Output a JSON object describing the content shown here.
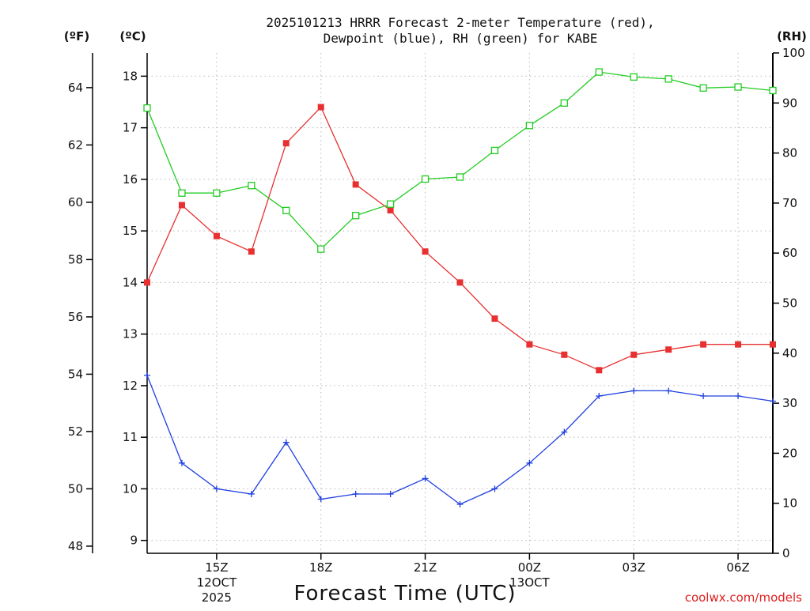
{
  "chart_data": {
    "type": "line",
    "title_lines": [
      "2025101213 HRRR Forecast 2-meter Temperature (red),",
      "Dewpoint (blue), RH (green) for KABE"
    ],
    "units": {
      "fahrenheit": "(ºF)",
      "celsius": "(ºC)",
      "rh": "(RH)"
    },
    "xlabel": "Forecast Time (UTC)",
    "credit": "coolwx.com/models",
    "x_hours": [
      13,
      14,
      15,
      16,
      17,
      18,
      19,
      20,
      21,
      22,
      23,
      24,
      25,
      26,
      27,
      28,
      29,
      30,
      31
    ],
    "xlim": [
      13,
      31
    ],
    "x_ticks": [
      {
        "hour": 15,
        "lines": [
          "15Z",
          "12OCT",
          "2025"
        ]
      },
      {
        "hour": 18,
        "lines": [
          "18Z"
        ]
      },
      {
        "hour": 21,
        "lines": [
          "21Z"
        ]
      },
      {
        "hour": 24,
        "lines": [
          "00Z",
          "13OCT"
        ]
      },
      {
        "hour": 27,
        "lines": [
          "03Z"
        ]
      },
      {
        "hour": 30,
        "lines": [
          "06Z"
        ]
      }
    ],
    "celsius_axis": {
      "lim": [
        8.75,
        18.45
      ],
      "ticks": [
        9,
        10,
        11,
        12,
        13,
        14,
        15,
        16,
        17,
        18
      ]
    },
    "fahrenheit_axis": {
      "lim": [
        47.75,
        65.21
      ],
      "ticks": [
        48,
        50,
        52,
        54,
        56,
        58,
        60,
        62,
        64
      ]
    },
    "rh_axis": {
      "lim": [
        0,
        100
      ],
      "ticks": [
        0,
        10,
        20,
        30,
        40,
        50,
        60,
        70,
        80,
        90,
        100
      ]
    },
    "series": [
      {
        "name": "Temperature",
        "axis": "celsius",
        "color": "#e83030",
        "marker": "filled-square",
        "values": [
          14.0,
          15.5,
          14.9,
          14.6,
          16.7,
          17.4,
          15.9,
          15.4,
          14.6,
          14.0,
          13.3,
          12.8,
          12.6,
          12.3,
          12.6,
          12.7,
          12.8,
          12.8,
          12.8
        ]
      },
      {
        "name": "Dewpoint",
        "axis": "celsius",
        "color": "#2040e0",
        "marker": "plus",
        "values": [
          12.2,
          10.5,
          10.0,
          9.9,
          10.9,
          9.8,
          9.9,
          9.9,
          10.2,
          9.7,
          10.0,
          10.5,
          11.1,
          11.8,
          11.9,
          11.9,
          11.8,
          11.8,
          11.7
        ]
      },
      {
        "name": "RH",
        "axis": "rh",
        "color": "#22cc22",
        "marker": "open-square",
        "values": [
          89,
          72,
          72,
          73.5,
          68.5,
          60.8,
          67.5,
          69.8,
          74.8,
          75.2,
          80.5,
          85.5,
          90,
          96.2,
          95.2,
          94.8,
          93,
          93.2,
          92.5
        ]
      }
    ]
  }
}
